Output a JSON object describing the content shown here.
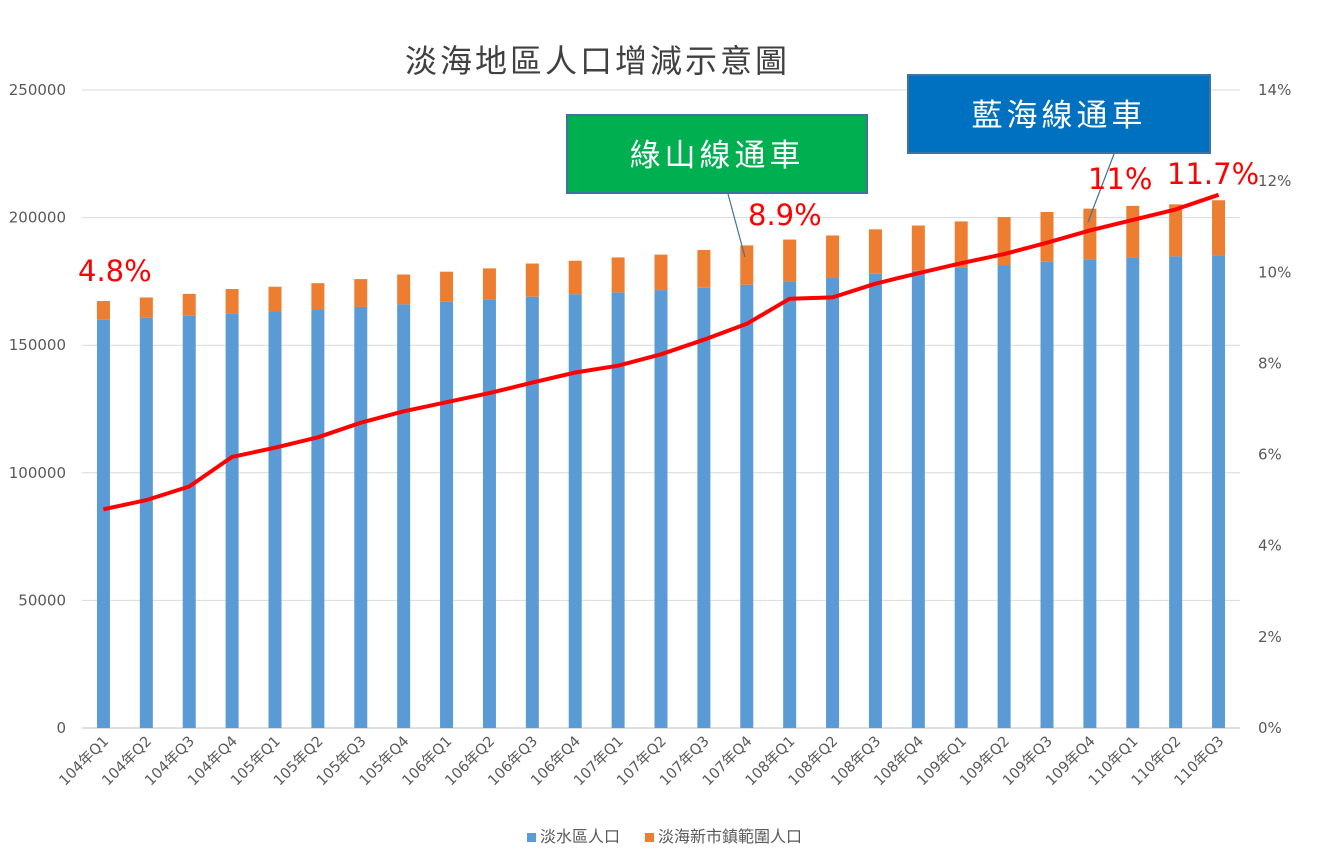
{
  "chart_data": {
    "type": "bar",
    "stacked": true,
    "title": "淡海地區人口增減示意圖",
    "categories": [
      "104年Q1",
      "104年Q2",
      "104年Q3",
      "104年Q4",
      "105年Q1",
      "105年Q2",
      "105年Q3",
      "105年Q4",
      "106年Q1",
      "106年Q2",
      "106年Q3",
      "106年Q4",
      "107年Q1",
      "107年Q2",
      "107年Q3",
      "107年Q4",
      "108年Q1",
      "108年Q2",
      "108年Q3",
      "108年Q4",
      "109年Q1",
      "109年Q2",
      "109年Q3",
      "109年Q4",
      "110年Q1",
      "110年Q2",
      "110年Q3"
    ],
    "series": [
      {
        "name": "淡水區人口",
        "type": "bar",
        "axis": "left",
        "color": "#5b9bd5",
        "values": [
          160000,
          160800,
          161500,
          162500,
          163200,
          164000,
          165000,
          166000,
          167000,
          168000,
          169000,
          170000,
          170700,
          171600,
          172500,
          173700,
          175000,
          176500,
          178000,
          179200,
          180500,
          181400,
          182700,
          183700,
          184400,
          184800,
          185200
        ]
      },
      {
        "name": "淡海新市鎮範圍人口",
        "type": "bar",
        "axis": "left",
        "color": "#ed7d31",
        "values": [
          7300,
          7900,
          8600,
          9500,
          9700,
          10300,
          10900,
          11700,
          11800,
          12100,
          13000,
          13100,
          13700,
          13900,
          14800,
          15400,
          16400,
          16500,
          17400,
          17700,
          18000,
          18800,
          19500,
          19800,
          20200,
          20400,
          21600
        ]
      },
      {
        "type": "line",
        "axis": "right",
        "color": "#ff0000",
        "values": [
          4.8,
          5.0,
          5.3,
          5.95,
          6.15,
          6.38,
          6.7,
          6.95,
          7.15,
          7.35,
          7.58,
          7.8,
          7.95,
          8.2,
          8.52,
          8.87,
          9.42,
          9.45,
          9.75,
          9.98,
          10.2,
          10.4,
          10.65,
          10.92,
          11.15,
          11.38,
          11.7
        ]
      }
    ],
    "ylim": [
      0,
      250000
    ],
    "yticks": [
      "0",
      "50000",
      "100000",
      "150000",
      "200000",
      "250000"
    ],
    "y2lim": [
      0,
      14
    ],
    "y2ticks": [
      "0%",
      "2%",
      "4%",
      "6%",
      "8%",
      "10%",
      "12%",
      "14%"
    ],
    "grid": true,
    "legend": "bottom",
    "annotations": [
      {
        "id": "green",
        "text": "綠山線通車",
        "color": "#00b050",
        "index": 15
      },
      {
        "id": "blue",
        "text": "藍海線通車",
        "color": "#0070c0",
        "index": 23
      }
    ],
    "data_labels": [
      "4.8%",
      "8.9%",
      "11%",
      "11.7%"
    ]
  }
}
